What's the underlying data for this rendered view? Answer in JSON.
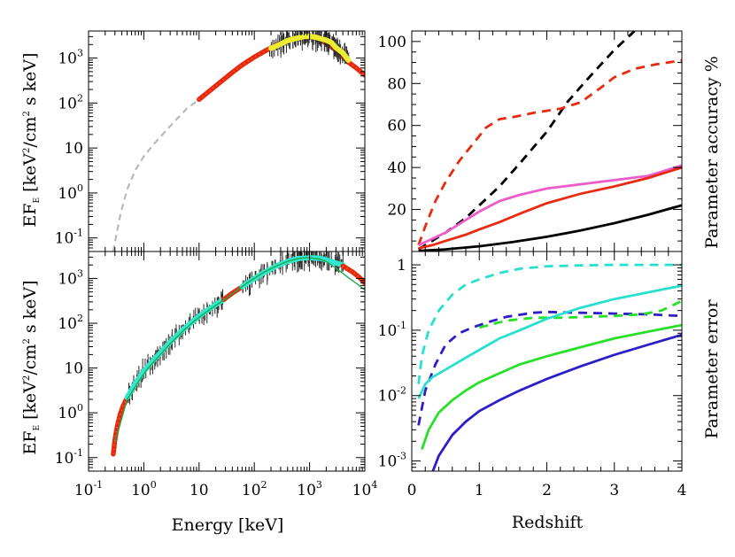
{
  "chart_data": [
    {
      "id": "spectrum-top",
      "type": "line",
      "xscale": "log",
      "yscale": "log",
      "xlim": [
        0.1,
        10000
      ],
      "ylim": [
        0.05,
        4000
      ],
      "xticks": [
        {
          "value": 0.1,
          "label": "10⁻¹"
        },
        {
          "value": 1,
          "label": "10⁰"
        },
        {
          "value": 10,
          "label": "10"
        },
        {
          "value": 100,
          "label": "10²"
        },
        {
          "value": 1000,
          "label": "10³"
        },
        {
          "value": 10000,
          "label": "10⁴"
        }
      ],
      "yticks": [
        {
          "value": 0.1,
          "label": "10⁻¹"
        },
        {
          "value": 1,
          "label": "10⁰"
        },
        {
          "value": 10,
          "label": "10"
        },
        {
          "value": 100,
          "label": "10²"
        },
        {
          "value": 1000,
          "label": "10³"
        }
      ],
      "ylabel": "EF_E [keV²/cm² s keV]",
      "series": [
        {
          "style": "dashed-gray",
          "x": [
            0.28,
            0.32,
            0.38,
            0.5,
            0.7,
            1.0,
            1.5,
            2.5,
            4,
            6,
            10
          ],
          "y": [
            0.05,
            0.12,
            0.35,
            1.2,
            3.2,
            6.5,
            12,
            24,
            45,
            75,
            120
          ]
        },
        {
          "style": "red-markers",
          "x": [
            10,
            15,
            25,
            40,
            60,
            100,
            150,
            250,
            400,
            600,
            800,
            1000,
            1300,
            1600,
            2000,
            3000,
            5000,
            7000,
            10000
          ],
          "y": [
            120,
            180,
            300,
            480,
            700,
            1050,
            1400,
            1950,
            2450,
            2800,
            2950,
            2950,
            2800,
            2500,
            2150,
            1500,
            820,
            600,
            420
          ]
        },
        {
          "style": "yellow-data",
          "x": [
            200,
            300,
            400,
            600,
            800,
            1000,
            1300,
            1600,
            2000,
            2500,
            3000,
            4000,
            5000
          ],
          "y": [
            1650,
            2050,
            2450,
            2800,
            3000,
            3050,
            2900,
            2700,
            2500,
            2200,
            1700,
            1300,
            900
          ]
        }
      ]
    },
    {
      "id": "spectrum-bottom",
      "type": "line",
      "xscale": "log",
      "yscale": "log",
      "xlim": [
        0.1,
        10000
      ],
      "ylim": [
        0.05,
        4000
      ],
      "xticks": [
        {
          "value": 0.1,
          "label": "10⁻¹"
        },
        {
          "value": 1,
          "label": "10⁰"
        },
        {
          "value": 10,
          "label": "10"
        },
        {
          "value": 100,
          "label": "10²"
        },
        {
          "value": 1000,
          "label": "10³"
        },
        {
          "value": 10000,
          "label": "10⁴"
        }
      ],
      "yticks": [
        {
          "value": 0.1,
          "label": "10⁻¹"
        },
        {
          "value": 1,
          "label": "10⁰"
        },
        {
          "value": 10,
          "label": "10"
        },
        {
          "value": 100,
          "label": "10²"
        },
        {
          "value": 1000,
          "label": "10³"
        }
      ],
      "xlabel": "Energy [keV]",
      "ylabel": "EF_E [keV²/cm² s keV]",
      "series": [
        {
          "style": "red-markers",
          "x": [
            0.28,
            0.3,
            0.33,
            0.37,
            0.42,
            0.5
          ],
          "y": [
            0.12,
            0.25,
            0.5,
            0.9,
            1.4,
            2.2
          ]
        },
        {
          "style": "cyan-data",
          "x": [
            0.5,
            0.7,
            1.0,
            1.5,
            2.0,
            3.0,
            5.0,
            8.0,
            12,
            20,
            28
          ],
          "y": [
            2.2,
            4.5,
            8.5,
            15,
            22,
            38,
            70,
            115,
            170,
            260,
            340
          ]
        },
        {
          "style": "red-markers",
          "x": [
            28,
            40,
            60
          ],
          "y": [
            340,
            470,
            650
          ]
        },
        {
          "style": "cyan-data",
          "x": [
            60,
            100,
            150,
            250,
            400,
            600,
            800,
            1000,
            1300,
            1600,
            2000,
            3000,
            4000
          ],
          "y": [
            650,
            1000,
            1350,
            1900,
            2400,
            2750,
            2900,
            2900,
            2850,
            2800,
            2600,
            2200,
            2000
          ]
        },
        {
          "style": "red-markers",
          "x": [
            4000,
            6000,
            8000,
            10000
          ],
          "y": [
            1900,
            1400,
            1050,
            800
          ]
        },
        {
          "style": "green-line",
          "x": [
            0.3,
            0.5,
            0.8,
            1.2,
            2,
            3,
            5,
            8,
            12,
            20,
            30,
            50,
            80,
            150,
            250,
            400,
            600,
            800,
            1000,
            1500,
            2000,
            3000,
            5000,
            7000,
            10000
          ],
          "y": [
            0.22,
            2.0,
            5,
            10,
            20,
            35,
            65,
            110,
            160,
            250,
            350,
            560,
            850,
            1380,
            1900,
            2400,
            2750,
            2900,
            2900,
            2700,
            2400,
            1700,
            1050,
            780,
            560
          ]
        }
      ]
    },
    {
      "id": "accuracy",
      "type": "line",
      "xlim": [
        0,
        4
      ],
      "ylim": [
        0,
        105
      ],
      "yticks": [
        {
          "value": 20,
          "label": "20"
        },
        {
          "value": 40,
          "label": "40"
        },
        {
          "value": 60,
          "label": "60"
        },
        {
          "value": 80,
          "label": "80"
        },
        {
          "value": 100,
          "label": "100"
        }
      ],
      "ylabel": "Parameter accuracy %",
      "series": [
        {
          "color": "#000000",
          "dash": true,
          "x": [
            0.1,
            0.3,
            0.5,
            0.8,
            1.0,
            1.3,
            1.6,
            2.0,
            2.3,
            2.6,
            3.0,
            3.3
          ],
          "y": [
            1,
            5,
            9,
            16,
            22,
            31,
            42,
            57,
            71,
            82,
            96,
            105
          ]
        },
        {
          "color": "#e82a10",
          "dash": true,
          "x": [
            0.1,
            0.2,
            0.35,
            0.5,
            0.7,
            0.9,
            1.1,
            1.3,
            1.5,
            1.8,
            2.0,
            2.2,
            2.5,
            2.8,
            3.0,
            3.3,
            3.6,
            4.0
          ],
          "y": [
            3,
            12,
            24,
            33,
            43,
            51,
            59,
            63,
            64,
            66,
            67,
            68,
            71,
            78,
            83,
            87,
            89,
            91
          ]
        },
        {
          "color": "#ee5ccc",
          "dash": false,
          "x": [
            0.1,
            0.3,
            0.5,
            0.8,
            1.0,
            1.3,
            1.6,
            2.0,
            2.5,
            3.0,
            3.5,
            4.0
          ],
          "y": [
            3,
            6,
            9,
            15,
            19,
            24,
            27,
            30,
            32,
            34,
            36,
            41
          ]
        },
        {
          "color": "#e82a10",
          "dash": false,
          "x": [
            0.1,
            0.3,
            0.5,
            0.8,
            1.0,
            1.3,
            1.6,
            2.0,
            2.5,
            3.0,
            3.5,
            4.0
          ],
          "y": [
            1.5,
            3,
            5,
            8,
            10.5,
            14,
            18,
            23,
            27.5,
            31,
            35,
            40
          ]
        },
        {
          "color": "#000000",
          "dash": false,
          "x": [
            0.1,
            0.5,
            1.0,
            1.5,
            2.0,
            2.5,
            3.0,
            3.5,
            4.0
          ],
          "y": [
            0.3,
            1,
            2.5,
            4.5,
            7,
            10,
            13.5,
            17.5,
            22
          ]
        }
      ]
    },
    {
      "id": "error",
      "type": "line",
      "xscale": "linear",
      "yscale": "log",
      "xlim": [
        0,
        4
      ],
      "ylim": [
        0.0007,
        1.6
      ],
      "xticks": [
        {
          "value": 0,
          "label": "0"
        },
        {
          "value": 1,
          "label": "1"
        },
        {
          "value": 2,
          "label": "2"
        },
        {
          "value": 3,
          "label": "3"
        },
        {
          "value": 4,
          "label": "4"
        }
      ],
      "yticks": [
        {
          "value": 0.001,
          "label": "10⁻³"
        },
        {
          "value": 0.01,
          "label": "10⁻²"
        },
        {
          "value": 0.1,
          "label": "10⁻¹"
        },
        {
          "value": 1,
          "label": "1"
        }
      ],
      "xlabel": "Redshift",
      "ylabel": "Parameter error",
      "series": [
        {
          "color": "#28e0d0",
          "dash": true,
          "x": [
            0.1,
            0.15,
            0.25,
            0.4,
            0.6,
            0.8,
            1.0,
            1.3,
            1.6,
            2.0,
            2.5,
            3.0,
            3.5,
            4.0
          ],
          "y": [
            0.015,
            0.04,
            0.1,
            0.2,
            0.35,
            0.5,
            0.6,
            0.75,
            0.87,
            0.95,
            0.98,
            1.0,
            1.0,
            1.0
          ]
        },
        {
          "color": "#2e1ec8",
          "dash": true,
          "x": [
            0.1,
            0.2,
            0.35,
            0.5,
            0.7,
            0.9,
            1.1,
            1.4,
            1.8,
            2.0,
            2.5,
            3.0,
            3.5,
            4.0
          ],
          "y": [
            0.0035,
            0.012,
            0.03,
            0.06,
            0.09,
            0.11,
            0.13,
            0.16,
            0.185,
            0.19,
            0.185,
            0.18,
            0.175,
            0.165
          ]
        },
        {
          "color": "#28e028",
          "dash": true,
          "x": [
            1.0,
            1.4,
            1.8,
            2.2,
            2.6,
            3.0,
            3.4,
            3.7,
            4.0
          ],
          "y": [
            0.11,
            0.14,
            0.155,
            0.155,
            0.16,
            0.165,
            0.175,
            0.2,
            0.28
          ]
        },
        {
          "color": "#28e0d0",
          "dash": false,
          "x": [
            0.1,
            0.2,
            0.3,
            0.5,
            0.8,
            1.0,
            1.3,
            1.6,
            2.0,
            2.5,
            3.0,
            3.5,
            4.0
          ],
          "y": [
            0.009,
            0.015,
            0.019,
            0.025,
            0.038,
            0.05,
            0.075,
            0.1,
            0.15,
            0.22,
            0.3,
            0.38,
            0.48
          ]
        },
        {
          "color": "#28e028",
          "dash": false,
          "x": [
            0.15,
            0.25,
            0.4,
            0.6,
            0.8,
            1.0,
            1.3,
            1.6,
            2.0,
            2.5,
            3.0,
            3.5,
            4.0
          ],
          "y": [
            0.0015,
            0.003,
            0.0055,
            0.0085,
            0.012,
            0.016,
            0.022,
            0.03,
            0.04,
            0.055,
            0.075,
            0.095,
            0.12
          ]
        },
        {
          "color": "#2e1ec8",
          "dash": false,
          "x": [
            0.3,
            0.4,
            0.6,
            0.8,
            1.0,
            1.3,
            1.6,
            2.0,
            2.5,
            3.0,
            3.5,
            4.0
          ],
          "y": [
            0.00065,
            0.0012,
            0.0025,
            0.004,
            0.0058,
            0.0085,
            0.012,
            0.018,
            0.028,
            0.042,
            0.06,
            0.085
          ]
        }
      ]
    }
  ]
}
